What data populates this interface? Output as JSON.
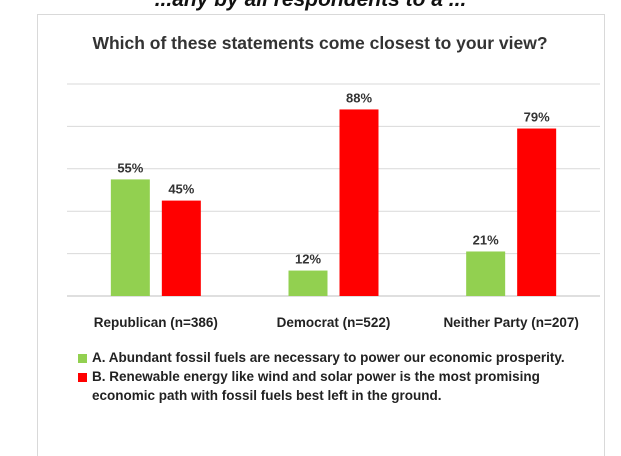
{
  "header_fragment": "...any by all respondents to a ...",
  "colors": {
    "series_a": "#92d050",
    "series_b": "#ff0000",
    "grid": "#d9d9d9",
    "axis": "#bfbfbf"
  },
  "chart_data": {
    "type": "bar",
    "title": "Which of these statements come closest to your view?",
    "categories": [
      "Republican (n=386)",
      "Democrat (n=522)",
      "Neither Party (n=207)"
    ],
    "series": [
      {
        "name": "A. Abundant fossil fuels are necessary to power our economic prosperity.",
        "values": [
          55,
          12,
          21
        ],
        "labels": [
          "55%",
          "12%",
          "21%"
        ]
      },
      {
        "name": "B. Renewable energy like wind and solar power is the most promising economic path with fossil fuels best left in the ground.",
        "values": [
          45,
          88,
          79
        ],
        "labels": [
          "45%",
          "88%",
          "79%"
        ]
      }
    ],
    "ylim": [
      0,
      100
    ],
    "grid": true,
    "legend_position": "bottom"
  }
}
